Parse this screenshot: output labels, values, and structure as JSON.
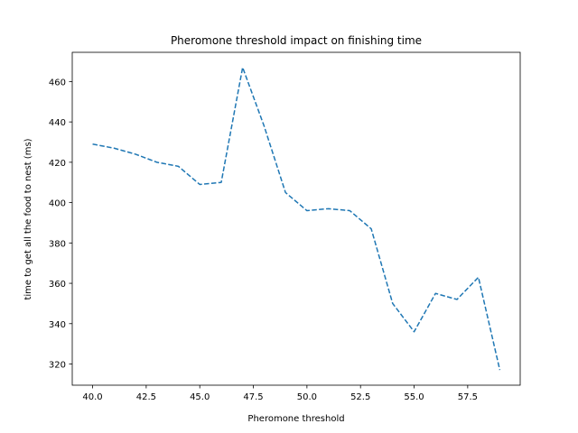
{
  "chart_data": {
    "type": "line",
    "title": "Pheromone threshold impact on finishing time",
    "xlabel": "Pheromone threshold",
    "ylabel": "time to get all the food to nest (ms)",
    "xlim": [
      39.05,
      59.95
    ],
    "ylim": [
      309.5,
      474.5
    ],
    "xticks": [
      40.0,
      42.5,
      45.0,
      47.5,
      50.0,
      52.5,
      55.0,
      57.5
    ],
    "xtick_labels": [
      "40.0",
      "42.5",
      "45.0",
      "47.5",
      "50.0",
      "52.5",
      "55.0",
      "57.5"
    ],
    "yticks": [
      320,
      340,
      360,
      380,
      400,
      420,
      440,
      460
    ],
    "ytick_labels": [
      "320",
      "340",
      "360",
      "380",
      "400",
      "420",
      "440",
      "460"
    ],
    "grid": false,
    "series": [
      {
        "color": "#1f77b4",
        "linestyle": "dashed",
        "x": [
          40,
          41,
          42,
          43,
          44,
          45,
          46,
          47,
          48,
          49,
          50,
          51,
          52,
          53,
          54,
          55,
          56,
          57,
          58,
          59
        ],
        "y": [
          429,
          427,
          424,
          420,
          418,
          409,
          410,
          467,
          438,
          405,
          396,
          397,
          396,
          387,
          350,
          336,
          355,
          352,
          363,
          317
        ]
      }
    ]
  }
}
